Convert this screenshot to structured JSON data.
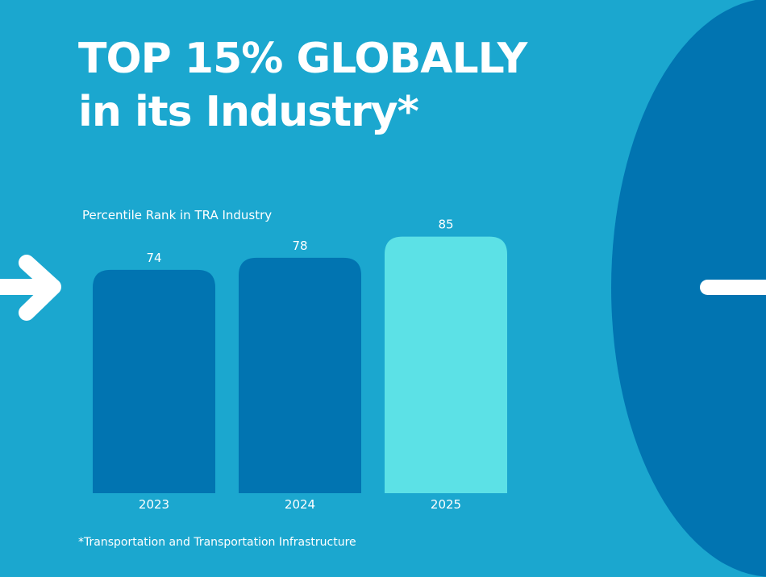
{
  "header": {
    "title_line1": "TOP 15% GLOBALLY",
    "title_line2": "in its Industry*"
  },
  "footnote": "*Transportation and Transportation Infrastructure",
  "colors": {
    "background": "#1ba7cf",
    "bar_past": "#0174b1",
    "bar_current": "#5ce1e6",
    "accent_shape": "#0174b1",
    "text": "#ffffff"
  },
  "icons": {
    "left_arrow": "arrow-right-icon",
    "right_dash": "dash-icon"
  },
  "chart_data": {
    "type": "bar",
    "title": "Percentile Rank in TRA Industry",
    "xlabel": "",
    "ylabel": "",
    "categories": [
      "2023",
      "2024",
      "2025"
    ],
    "values": [
      74,
      78,
      85
    ],
    "data_labels": [
      "74",
      "78",
      "85"
    ],
    "ylim": [
      0,
      100
    ],
    "grid": false,
    "legend": "none",
    "highlight_category": "2025"
  }
}
